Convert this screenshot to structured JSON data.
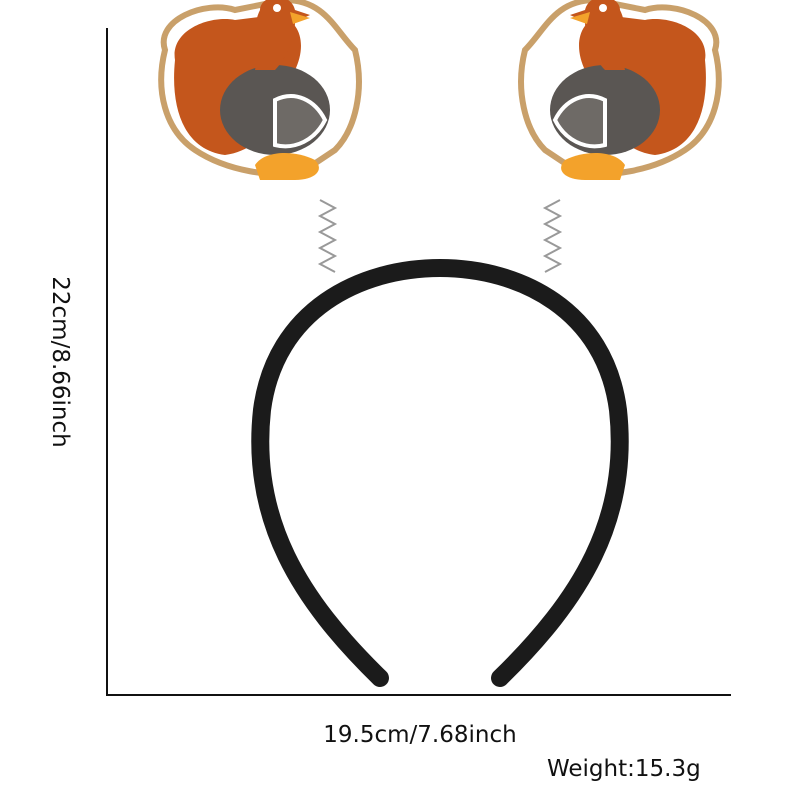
{
  "dimensions": {
    "height": "22cm/8.66inch",
    "width": "19.5cm/7.68inch",
    "weight": "Weight:15.3g"
  },
  "colors": {
    "band": "#1b1b1b",
    "turkey_body": "#c4561c",
    "turkey_wing": "#5a5653",
    "turkey_feet": "#f3a22b",
    "outline": "#c9a06a"
  }
}
